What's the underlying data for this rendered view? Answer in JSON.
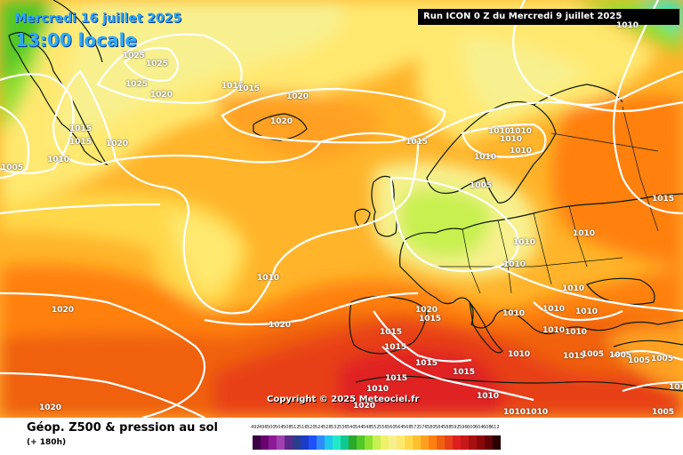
{
  "header": {
    "date": "Mercredi 16 juillet 2025",
    "time": "13:00 locale",
    "run": "Run ICON 0 Z du Mercredi 9 juillet 2025"
  },
  "copyright": "Copyright © 2025 Meteociel.fr",
  "footer": {
    "title": "Géop. Z500 & pression au sol",
    "subtitle": "(+ 180h)"
  },
  "pressure_labels": [
    "1025",
    "1025",
    "1025",
    "1020",
    "1015",
    "1015",
    "1020",
    "1020",
    "1015",
    "1015",
    "1020",
    "1010",
    "1005",
    "1015",
    "1010",
    "1010",
    "1010",
    "1010",
    "1005",
    "1010",
    "1010",
    "1015",
    "1010",
    "1010",
    "1010",
    "1020",
    "1015",
    "1015",
    "1015",
    "1015",
    "1015",
    "1015",
    "1010",
    "1010",
    "1010",
    "1010",
    "1010",
    "1010",
    "1010",
    "1010",
    "1005",
    "1005",
    "1005",
    "1005",
    "1015",
    "1010",
    "1020",
    "1020",
    "1020",
    "1010",
    "1020",
    "10101010",
    "1005",
    "1010"
  ],
  "legend": {
    "labels": [
      "492",
      "496",
      "500",
      "504",
      "508",
      "512",
      "516",
      "520",
      "524",
      "528",
      "532",
      "536",
      "540",
      "544",
      "548",
      "552",
      "556",
      "560",
      "564",
      "568",
      "572",
      "576",
      "580",
      "584",
      "588",
      "592",
      "596",
      "600",
      "604",
      "608",
      "612"
    ],
    "colors": [
      "#3a0042",
      "#6a006e",
      "#8c1a96",
      "#a040b0",
      "#5a2a8a",
      "#2a3c8c",
      "#1a3cc8",
      "#1e50ff",
      "#2f8cff",
      "#20c8f0",
      "#22e8c8",
      "#10c890",
      "#2aa82a",
      "#50c828",
      "#8ee030",
      "#c8f050",
      "#f0f06a",
      "#f8f08e",
      "#ffe870",
      "#ffd84a",
      "#ffc030",
      "#ffa020",
      "#ff8010",
      "#f06010",
      "#e84018",
      "#e02020",
      "#c81818",
      "#a80f10",
      "#8a0808",
      "#600408",
      "#280000"
    ]
  },
  "colors": {
    "accent_title": "#2ea8ff",
    "isobar": "#ffffff",
    "coast": "#0a1a0a"
  }
}
